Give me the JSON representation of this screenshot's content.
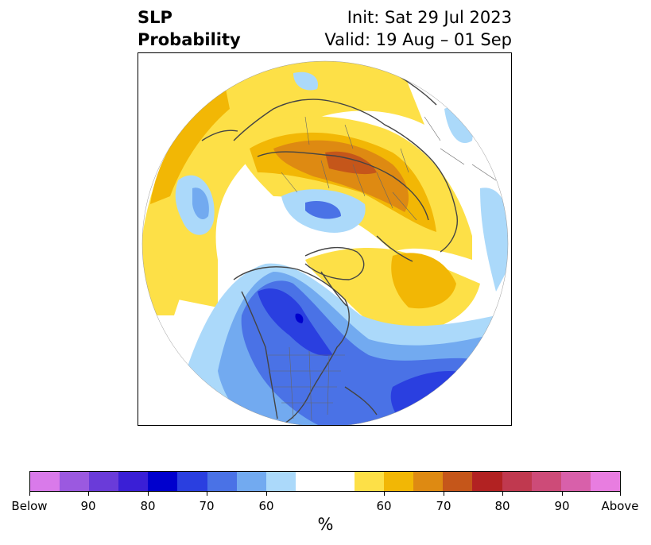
{
  "title": {
    "left_line1": "SLP",
    "left_line2": "Probability",
    "right_line1": "Init: Sat 29 Jul 2023",
    "right_line2": "Valid: 19 Aug – 01 Sep"
  },
  "colorbar": {
    "unit": "%",
    "colors": [
      "#d97aea",
      "#9b59e0",
      "#6a3bd9",
      "#3a1fd6",
      "#0000cd",
      "#2a3fe0",
      "#4a72e6",
      "#72aaf0",
      "#abd9fa",
      "#ffffff",
      "#ffffff",
      "#fde047",
      "#f2b705",
      "#de8a12",
      "#c5561a",
      "#b22222",
      "#c0394f",
      "#cd4b78",
      "#d860aa",
      "#e87de0"
    ],
    "labels": [
      "Below",
      "90",
      "80",
      "70",
      "60",
      "60",
      "70",
      "80",
      "90",
      "Above"
    ],
    "label_positions": [
      0,
      2,
      4,
      6,
      8,
      12,
      14,
      16,
      18,
      20
    ]
  },
  "map": {
    "projection": "north-polar-stereographic",
    "fill_colors": {
      "white": "#ffffff",
      "light_yellow": "#fde047",
      "yellow": "#f2b705",
      "orange": "#de8a12",
      "dark_orange": "#c5561a",
      "light_blue": "#abd9fa",
      "blue": "#72aaf0",
      "medium_blue": "#4a72e6",
      "dark_blue": "#2a3fe0",
      "deep_blue": "#0000cd",
      "coastline": "#444444"
    }
  }
}
